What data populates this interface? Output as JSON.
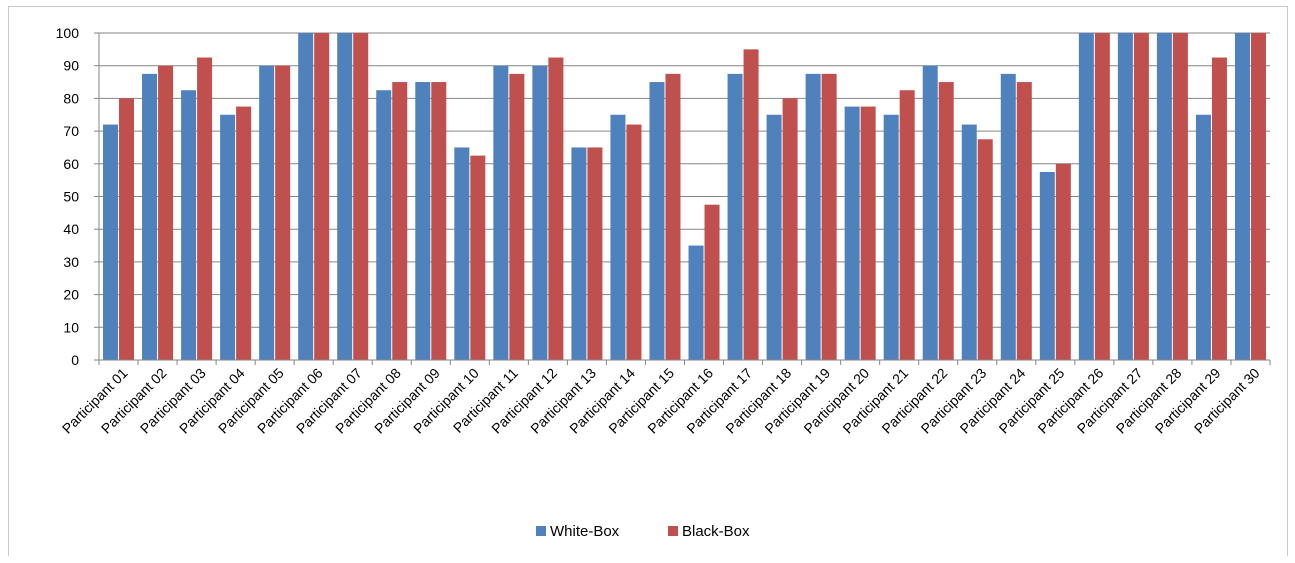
{
  "chart_data": {
    "type": "bar",
    "categories": [
      "Participant 01",
      "Participant 02",
      "Participant 03",
      "Participant 04",
      "Participant 05",
      "Participant 06",
      "Participant 07",
      "Participant 08",
      "Participant 09",
      "Participant 10",
      "Participant 11",
      "Participant 12",
      "Participant 13",
      "Participant 14",
      "Participant 15",
      "Participant 16",
      "Participant 17",
      "Participant 18",
      "Participant 19",
      "Participant 20",
      "Participant 21",
      "Participant 22",
      "Participant 23",
      "Participant 24",
      "Participant 25",
      "Participant 26",
      "Participant 27",
      "Participant 28",
      "Participant 29",
      "Participant 30"
    ],
    "series": [
      {
        "name": "White-Box",
        "color": "#4f81bd",
        "values": [
          72,
          87.5,
          82.5,
          75,
          90,
          100,
          100,
          82.5,
          85,
          65,
          90,
          90,
          65,
          75,
          85,
          35,
          87.5,
          75,
          87.5,
          77.5,
          75,
          90,
          72,
          87.5,
          57.5,
          100,
          100,
          100,
          75,
          100
        ]
      },
      {
        "name": "Black-Box",
        "color": "#c0504d",
        "values": [
          80,
          90,
          92.5,
          77.5,
          90,
          100,
          100,
          85,
          85,
          62.5,
          87.5,
          92.5,
          65,
          72,
          87.5,
          47.5,
          95,
          80,
          87.5,
          77.5,
          82.5,
          85,
          67.5,
          85,
          60,
          100,
          100,
          100,
          92.5,
          100
        ]
      }
    ],
    "title": "",
    "xlabel": "",
    "ylabel": "",
    "ylim": [
      0,
      100
    ],
    "yticks": [
      0,
      10,
      20,
      30,
      40,
      50,
      60,
      70,
      80,
      90,
      100
    ],
    "grid": true,
    "legend": "bottom-center"
  }
}
